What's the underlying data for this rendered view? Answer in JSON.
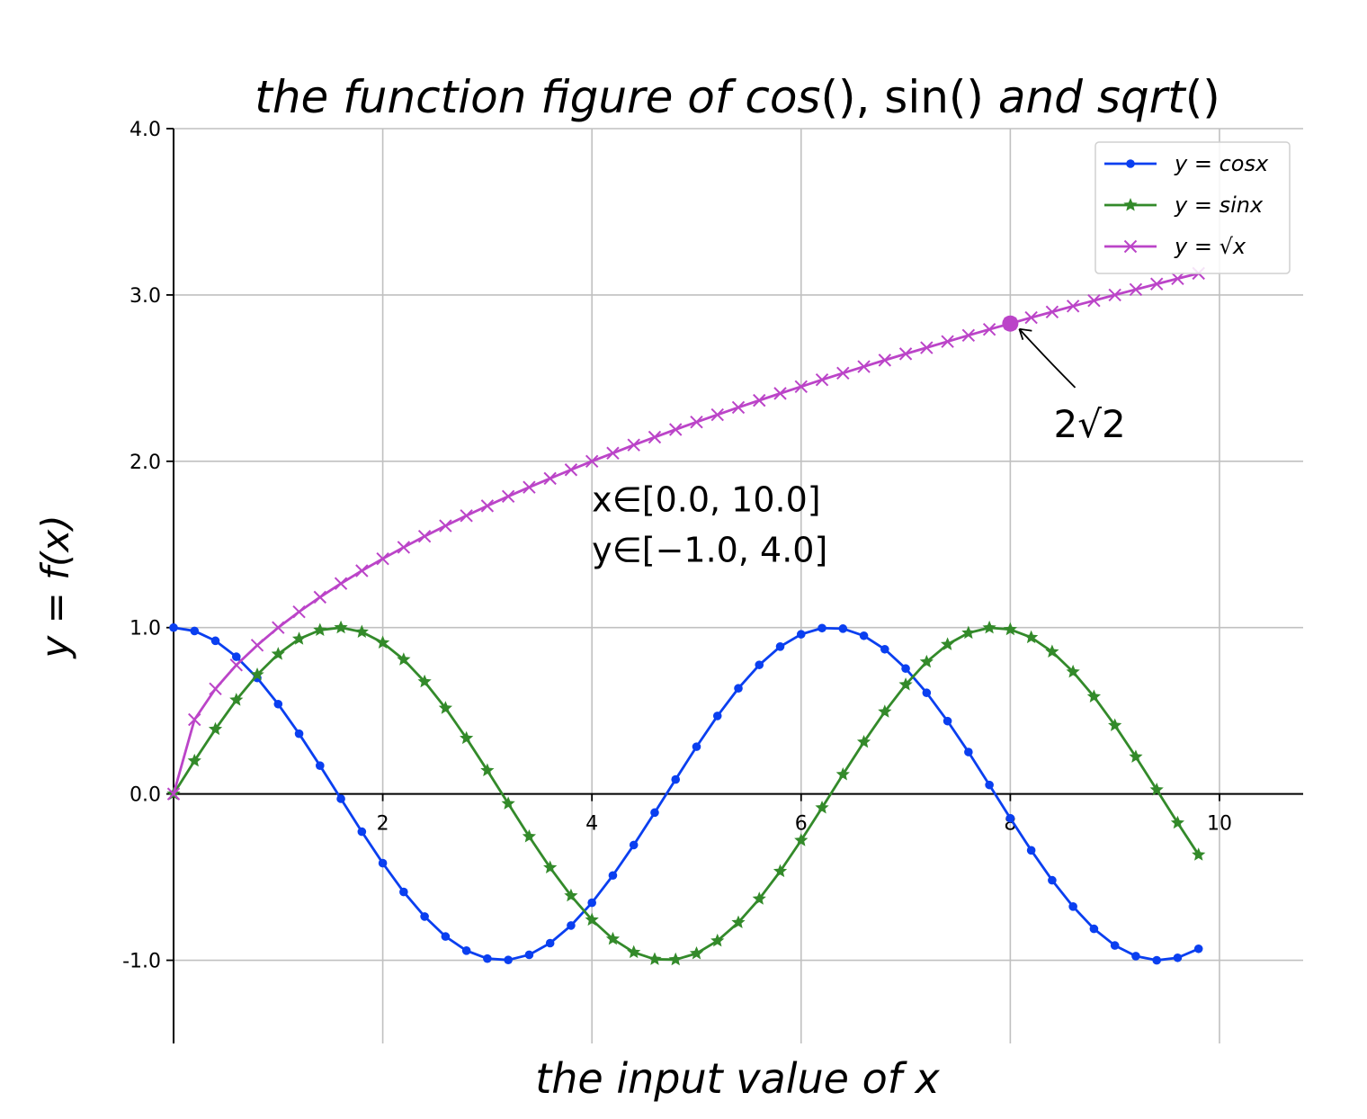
{
  "chart_data": {
    "type": "line",
    "title": "the function figure of cos(), sin() and sqrt()",
    "title_parts": [
      "the function figure of ",
      "cos",
      "(), ",
      "sin()",
      " and ",
      "sqrt",
      "()"
    ],
    "xlabel": "the input value of x",
    "ylabel": "y = f(x)",
    "xlim": [
      0,
      10.8
    ],
    "ylim": [
      -1.5,
      4.0
    ],
    "x_ticks": [
      2,
      4,
      6,
      8,
      10
    ],
    "x_tick_labels": [
      "2",
      "4",
      "6",
      "8",
      "10"
    ],
    "y_ticks": [
      -1.0,
      0.0,
      1.0,
      2.0,
      3.0,
      4.0
    ],
    "y_tick_labels": [
      "-1.0",
      "0.0",
      "1.0",
      "2.0",
      "3.0",
      "4.0"
    ],
    "grid": true,
    "legend_position": "top-right",
    "x": [
      0.0,
      0.2,
      0.4,
      0.6,
      0.8,
      1.0,
      1.2,
      1.4,
      1.6,
      1.8,
      2.0,
      2.2,
      2.4,
      2.6,
      2.8,
      3.0,
      3.2,
      3.4,
      3.6,
      3.8,
      4.0,
      4.2,
      4.4,
      4.6,
      4.8,
      5.0,
      5.2,
      5.4,
      5.6,
      5.8,
      6.0,
      6.2,
      6.4,
      6.6,
      6.8,
      7.0,
      7.2,
      7.4,
      7.6,
      7.8,
      8.0,
      8.2,
      8.4,
      8.6,
      8.8,
      9.0,
      9.2,
      9.4,
      9.6,
      9.8
    ],
    "series": [
      {
        "name": "y = cosx",
        "color": "#0a3ff0",
        "marker": "dot",
        "values": [
          1.0,
          0.98,
          0.921,
          0.825,
          0.697,
          0.54,
          0.362,
          0.17,
          -0.029,
          -0.227,
          -0.416,
          -0.589,
          -0.737,
          -0.857,
          -0.942,
          -0.99,
          -0.998,
          -0.967,
          -0.897,
          -0.791,
          -0.654,
          -0.49,
          -0.307,
          -0.112,
          0.087,
          0.284,
          0.469,
          0.635,
          0.776,
          0.886,
          0.96,
          0.997,
          0.994,
          0.951,
          0.87,
          0.754,
          0.608,
          0.438,
          0.252,
          0.054,
          -0.146,
          -0.339,
          -0.519,
          -0.677,
          -0.811,
          -0.911,
          -0.975,
          -1.0,
          -0.985,
          -0.931
        ]
      },
      {
        "name": "y = sinx",
        "color": "#338a2a",
        "marker": "star",
        "values": [
          0.0,
          0.199,
          0.389,
          0.565,
          0.717,
          0.841,
          0.932,
          0.985,
          1.0,
          0.974,
          0.909,
          0.808,
          0.675,
          0.516,
          0.335,
          0.141,
          -0.058,
          -0.256,
          -0.443,
          -0.612,
          -0.757,
          -0.872,
          -0.952,
          -0.994,
          -0.996,
          -0.959,
          -0.883,
          -0.773,
          -0.631,
          -0.465,
          -0.279,
          -0.083,
          0.117,
          0.312,
          0.494,
          0.657,
          0.794,
          0.899,
          0.968,
          0.999,
          0.989,
          0.941,
          0.855,
          0.734,
          0.585,
          0.412,
          0.223,
          0.025,
          -0.174,
          -0.366
        ]
      },
      {
        "name": "y = √x",
        "color": "#bb44c8",
        "marker": "x",
        "values": [
          0.0,
          0.447,
          0.632,
          0.775,
          0.894,
          1.0,
          1.095,
          1.183,
          1.265,
          1.342,
          1.414,
          1.483,
          1.549,
          1.612,
          1.673,
          1.732,
          1.789,
          1.844,
          1.897,
          1.949,
          2.0,
          2.049,
          2.098,
          2.145,
          2.191,
          2.236,
          2.28,
          2.324,
          2.366,
          2.408,
          2.449,
          2.49,
          2.53,
          2.569,
          2.608,
          2.646,
          2.683,
          2.72,
          2.757,
          2.793,
          2.828,
          2.864,
          2.898,
          2.933,
          2.966,
          3.0,
          3.033,
          3.066,
          3.098,
          3.13
        ]
      }
    ],
    "annotations": [
      {
        "kind": "point",
        "x": 8.0,
        "y": 2.828,
        "text": "2√2",
        "text_x": 8.5,
        "text_y": 2.2,
        "color": "#bb44c8"
      },
      {
        "kind": "text",
        "x": 4.0,
        "y": 1.7,
        "lines": [
          "x∈[0.0,  10.0]",
          "y∈[−1.0,  4.0]"
        ]
      }
    ]
  }
}
